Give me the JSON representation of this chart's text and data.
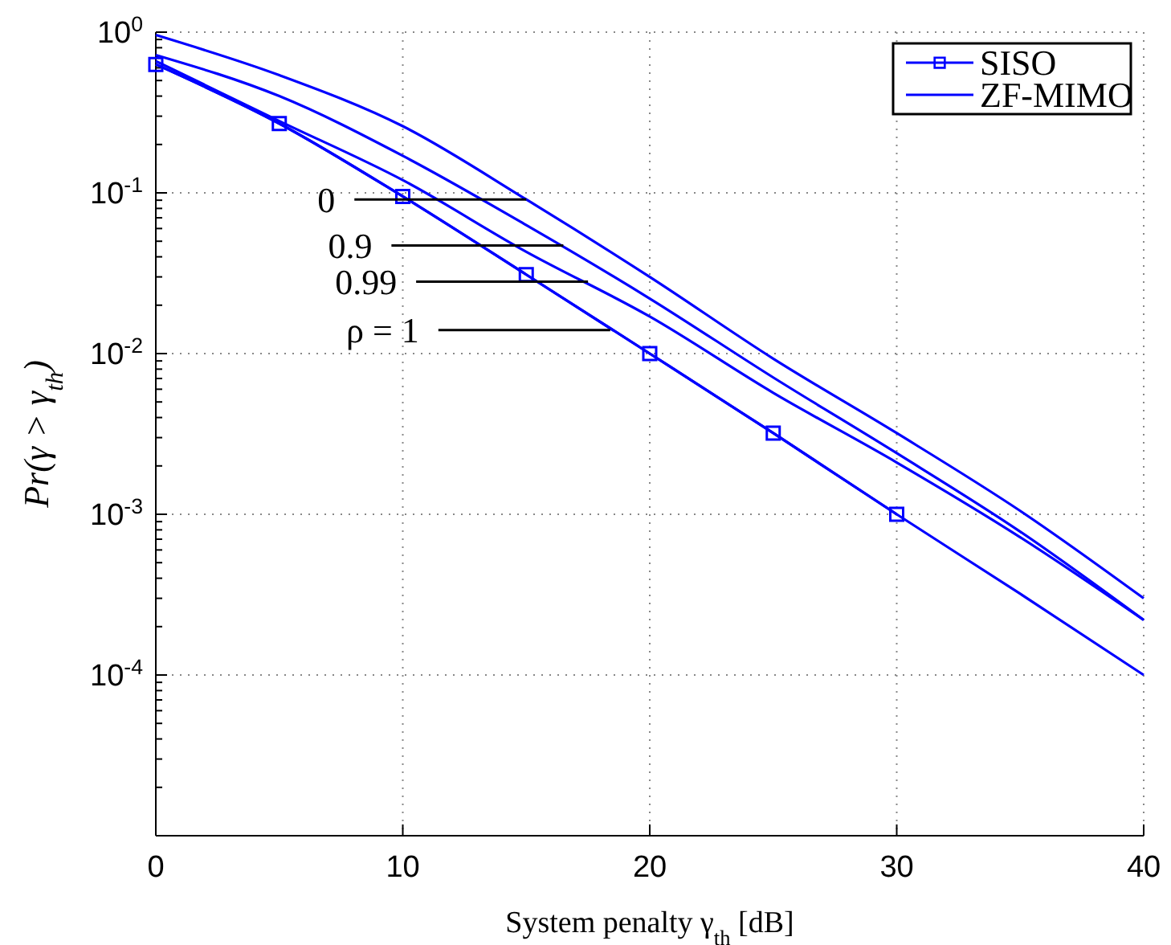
{
  "chart_data": {
    "type": "line",
    "xlabel": "System penalty γ$_{th}$ [dB]",
    "ylabel": "Pr(γ > γ$_{th}$)",
    "log": "y",
    "grid": true,
    "legend": "top right",
    "xlim": [
      0,
      40
    ],
    "xticks": [
      0,
      10,
      20,
      30,
      40
    ],
    "ylim": [
      1e-05,
      1
    ],
    "yticks": [
      {
        "value": 1,
        "label": "10$^{0}$"
      },
      {
        "value": 0.1,
        "label": "10$^{-1}$"
      },
      {
        "value": 0.01,
        "label": "10$^{-2}$"
      },
      {
        "value": 0.001,
        "label": "10$^{-3}$"
      },
      {
        "value": 0.0001,
        "label": "10$^{-4}$"
      }
    ],
    "series": [
      {
        "name": "SISO",
        "color": "#0000ff",
        "marker": "square",
        "x": [
          0,
          5,
          10,
          15,
          20,
          25,
          30
        ],
        "values": [
          0.63,
          0.27,
          0.095,
          0.031,
          0.01,
          0.0032,
          0.001
        ]
      },
      {
        "name": "ZF-MIMO",
        "color": "#0000ff",
        "marker": "none",
        "x": [
          0,
          5,
          10,
          15,
          20,
          25,
          30,
          35,
          40
        ],
        "values": [
          0.96,
          0.54,
          0.26,
          0.091,
          0.03,
          0.0093,
          0.0032,
          0.00105,
          0.0003
        ]
      },
      {
        "color": "#0000ff",
        "marker": "none",
        "x": [
          0,
          5,
          10,
          15,
          20,
          25,
          30,
          35,
          40
        ],
        "values": [
          0.72,
          0.4,
          0.17,
          0.063,
          0.022,
          0.0071,
          0.0024,
          0.00078,
          0.00022
        ]
      },
      {
        "color": "#0000ff",
        "marker": "none",
        "x": [
          0,
          5,
          10,
          15,
          20,
          25,
          30,
          35,
          40
        ],
        "values": [
          0.66,
          0.28,
          0.12,
          0.043,
          0.017,
          0.0057,
          0.0021,
          0.00072,
          0.00022
        ]
      },
      {
        "color": "#0000ff",
        "marker": "none",
        "x": [
          0,
          5,
          10,
          15,
          20,
          25,
          30,
          35,
          40
        ],
        "values": [
          0.63,
          0.27,
          0.095,
          0.031,
          0.01,
          0.0032,
          0.001,
          0.00032,
          0.0001
        ]
      }
    ],
    "annotations": [
      {
        "text": "0",
        "x": 15,
        "y": 0.091
      },
      {
        "text": "0.9",
        "x": 16.5,
        "y": 0.047
      },
      {
        "text": "0.99",
        "x": 17.5,
        "y": 0.028
      },
      {
        "text": "ρ = 1",
        "x": 18.4,
        "y": 0.014
      }
    ]
  }
}
